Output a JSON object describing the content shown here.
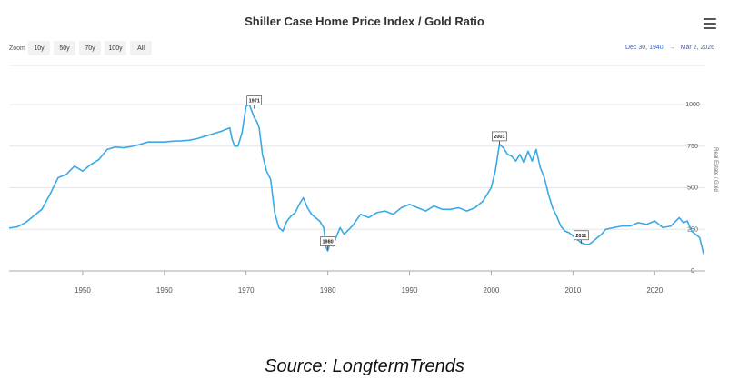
{
  "header": {
    "title": "Shiller Case Home Price Index / Gold Ratio"
  },
  "toolbar": {
    "zoom_label": "Zoom",
    "zoom_buttons": [
      "10y",
      "50y",
      "70y",
      "100y",
      "All"
    ],
    "range_from": "Dec 30, 1940",
    "range_separator": "→",
    "range_to": "Mar 2, 2026"
  },
  "footer": {
    "source": "Source: LongtermTrends"
  },
  "colors": {
    "series": "#3aa9e6",
    "grid": "#e6e6e6",
    "axis": "#888888",
    "link": "#3366cc"
  },
  "chart_data": {
    "type": "line",
    "title": "Shiller Case Home Price Index / Gold Ratio",
    "xlabel": "",
    "ylabel": "Real Estate / Gold",
    "xlim": [
      1941,
      2026.2
    ],
    "ylim": [
      0,
      1000
    ],
    "xticks": [
      1950,
      1960,
      1970,
      1980,
      1990,
      2000,
      2010,
      2020
    ],
    "yticks": [
      0,
      250,
      500,
      750,
      1000
    ],
    "series": [
      {
        "name": "Real Estate / Gold",
        "x": [
          1941,
          1942,
          1943,
          1944,
          1945,
          1946,
          1947,
          1948,
          1949,
          1950,
          1951,
          1952,
          1953,
          1954,
          1955,
          1956,
          1957,
          1958,
          1959,
          1960,
          1961,
          1962,
          1963,
          1964,
          1965,
          1966,
          1967,
          1968,
          1968.3,
          1968.6,
          1969,
          1969.5,
          1970,
          1970.4,
          1970.7,
          1971,
          1971.3,
          1971.6,
          1972,
          1972.5,
          1973,
          1973.5,
          1974,
          1974.5,
          1975,
          1975.5,
          1976,
          1976.5,
          1977,
          1977.5,
          1978,
          1978.5,
          1979,
          1979.5,
          1979.8,
          1980,
          1980.3,
          1980.6,
          1981,
          1981.5,
          1982,
          1983,
          1984,
          1985,
          1986,
          1987,
          1988,
          1989,
          1990,
          1991,
          1992,
          1993,
          1994,
          1995,
          1996,
          1997,
          1998,
          1999,
          2000,
          2000.5,
          2001,
          2001.5,
          2002,
          2002.5,
          2003,
          2003.5,
          2004,
          2004.5,
          2005,
          2005.5,
          2006,
          2006.5,
          2007,
          2007.5,
          2008,
          2008.5,
          2009,
          2009.5,
          2010,
          2010.5,
          2011,
          2011.5,
          2012,
          2012.5,
          2013,
          2013.5,
          2014,
          2015,
          2016,
          2017,
          2018,
          2019,
          2020,
          2021,
          2022,
          2023,
          2023.5,
          2024,
          2024.5,
          2025,
          2025.5,
          2026
        ],
        "values": [
          258,
          265,
          290,
          330,
          370,
          460,
          560,
          580,
          630,
          600,
          640,
          670,
          730,
          745,
          740,
          748,
          760,
          775,
          775,
          775,
          780,
          782,
          785,
          795,
          810,
          825,
          840,
          860,
          790,
          750,
          750,
          830,
          990,
          1000,
          960,
          920,
          900,
          860,
          700,
          600,
          550,
          350,
          260,
          240,
          300,
          330,
          350,
          400,
          440,
          380,
          340,
          320,
          300,
          260,
          140,
          120,
          170,
          150,
          200,
          260,
          220,
          270,
          340,
          320,
          350,
          360,
          340,
          380,
          400,
          380,
          360,
          390,
          370,
          370,
          380,
          360,
          380,
          420,
          500,
          600,
          760,
          740,
          700,
          690,
          660,
          700,
          650,
          720,
          660,
          730,
          620,
          560,
          460,
          380,
          330,
          270,
          240,
          230,
          210,
          190,
          170,
          160,
          160,
          180,
          200,
          220,
          250,
          260,
          270,
          270,
          290,
          280,
          300,
          260,
          270,
          320,
          290,
          300,
          240,
          220,
          200,
          100
        ]
      }
    ],
    "annotations": [
      {
        "x": 1971,
        "y": 975,
        "label": "1971"
      },
      {
        "x": 1980,
        "y": 128,
        "label": "1980"
      },
      {
        "x": 2001,
        "y": 760,
        "label": "2001"
      },
      {
        "x": 2011,
        "y": 165,
        "label": "2011"
      }
    ]
  }
}
